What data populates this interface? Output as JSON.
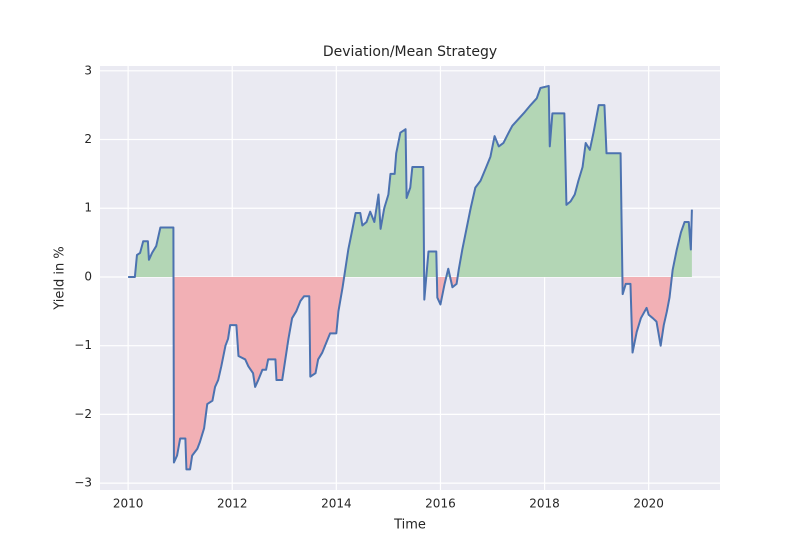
{
  "chart_data": {
    "type": "line",
    "title": "Deviation/Mean Strategy",
    "x_label": "Time",
    "y_label": "Yield in %",
    "x": [
      2010.0,
      2010.13,
      2010.17,
      2010.23,
      2010.29,
      2010.38,
      2010.4,
      2010.46,
      2010.54,
      2010.62,
      2010.87,
      2010.88,
      2010.94,
      2011.0,
      2011.1,
      2011.12,
      2011.19,
      2011.23,
      2011.33,
      2011.38,
      2011.46,
      2011.52,
      2011.62,
      2011.67,
      2011.73,
      2011.79,
      2011.87,
      2011.92,
      2011.96,
      2012.08,
      2012.12,
      2012.25,
      2012.31,
      2012.4,
      2012.44,
      2012.5,
      2012.58,
      2012.65,
      2012.69,
      2012.83,
      2012.85,
      2012.96,
      2013.0,
      2013.08,
      2013.15,
      2013.23,
      2013.31,
      2013.38,
      2013.48,
      2013.5,
      2013.6,
      2013.65,
      2013.73,
      2013.81,
      2013.88,
      2014.0,
      2014.04,
      2014.12,
      2014.17,
      2014.23,
      2014.31,
      2014.37,
      2014.46,
      2014.5,
      2014.58,
      2014.65,
      2014.73,
      2014.81,
      2014.85,
      2014.92,
      2015.0,
      2015.04,
      2015.12,
      2015.15,
      2015.23,
      2015.33,
      2015.35,
      2015.42,
      2015.46,
      2015.67,
      2015.69,
      2015.77,
      2015.92,
      2015.94,
      2016.0,
      2016.08,
      2016.15,
      2016.23,
      2016.31,
      2016.35,
      2016.42,
      2016.5,
      2016.58,
      2016.67,
      2016.77,
      2016.88,
      2016.96,
      2017.04,
      2017.12,
      2017.21,
      2017.31,
      2017.38,
      2017.5,
      2017.62,
      2017.73,
      2017.85,
      2017.92,
      2018.08,
      2018.1,
      2018.15,
      2018.38,
      2018.42,
      2018.5,
      2018.58,
      2018.65,
      2018.73,
      2018.79,
      2018.87,
      2018.94,
      2019.04,
      2019.15,
      2019.19,
      2019.46,
      2019.5,
      2019.56,
      2019.65,
      2019.69,
      2019.77,
      2019.85,
      2019.96,
      2020.0,
      2020.08,
      2020.15,
      2020.23,
      2020.29,
      2020.35,
      2020.4,
      2020.46,
      2020.54,
      2020.62,
      2020.69,
      2020.77,
      2020.81,
      2020.83
    ],
    "series": [
      {
        "name": "Yield",
        "color": "#4c72b0",
        "values": [
          0,
          0,
          0.32,
          0.35,
          0.52,
          0.52,
          0.25,
          0.35,
          0.45,
          0.72,
          0.72,
          -2.7,
          -2.6,
          -2.35,
          -2.35,
          -2.8,
          -2.8,
          -2.6,
          -2.5,
          -2.4,
          -2.2,
          -1.85,
          -1.8,
          -1.6,
          -1.5,
          -1.3,
          -1.0,
          -0.9,
          -0.7,
          -0.7,
          -1.15,
          -1.2,
          -1.3,
          -1.4,
          -1.6,
          -1.5,
          -1.35,
          -1.35,
          -1.2,
          -1.2,
          -1.5,
          -1.5,
          -1.3,
          -0.9,
          -0.6,
          -0.5,
          -0.35,
          -0.28,
          -0.28,
          -1.45,
          -1.4,
          -1.2,
          -1.1,
          -0.95,
          -0.82,
          -0.82,
          -0.5,
          -0.15,
          0.1,
          0.4,
          0.7,
          0.93,
          0.93,
          0.75,
          0.8,
          0.95,
          0.8,
          1.2,
          0.7,
          1.0,
          1.2,
          1.5,
          1.5,
          1.8,
          2.1,
          2.15,
          1.15,
          1.3,
          1.6,
          1.6,
          -0.33,
          0.37,
          0.37,
          -0.3,
          -0.4,
          -0.1,
          0.12,
          -0.15,
          -0.1,
          0.1,
          0.4,
          0.7,
          1.0,
          1.3,
          1.4,
          1.6,
          1.75,
          2.05,
          1.9,
          1.95,
          2.1,
          2.2,
          2.3,
          2.4,
          2.5,
          2.6,
          2.75,
          2.78,
          1.9,
          2.38,
          2.38,
          1.05,
          1.1,
          1.2,
          1.4,
          1.6,
          1.95,
          1.85,
          2.1,
          2.5,
          2.5,
          1.8,
          1.8,
          -0.25,
          -0.1,
          -0.1,
          -1.1,
          -0.8,
          -0.6,
          -0.45,
          -0.55,
          -0.6,
          -0.65,
          -1.0,
          -0.7,
          -0.5,
          -0.3,
          0.1,
          0.4,
          0.65,
          0.8,
          0.8,
          0.4,
          0.98
        ]
      }
    ],
    "positive_color": "#b3d6b5",
    "negative_color": "#f2b0b5",
    "xlim": [
      2009.46,
      2021.37
    ],
    "ylim": [
      -3.1,
      3.07
    ],
    "xticks": [
      2010,
      2012,
      2014,
      2016,
      2018,
      2020
    ],
    "yticks": [
      {
        "value": -3,
        "label": "−3"
      },
      {
        "value": -2,
        "label": "−2"
      },
      {
        "value": -1,
        "label": "−1"
      },
      0,
      1,
      2,
      3
    ],
    "grid": true
  }
}
